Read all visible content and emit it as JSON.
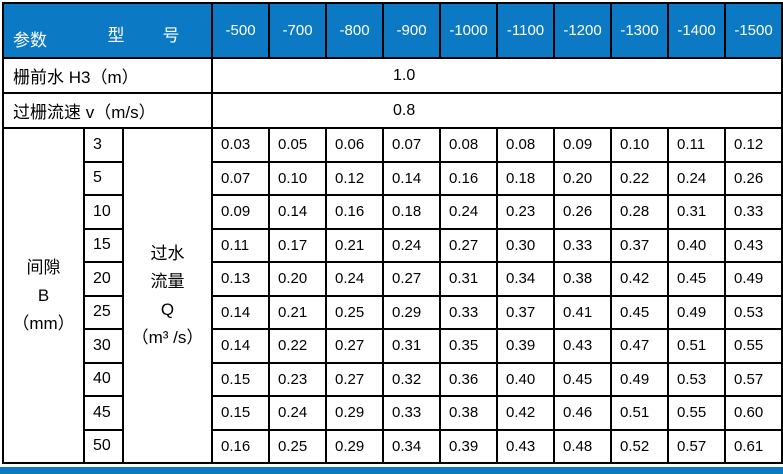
{
  "table": {
    "corner": {
      "model_chars": [
        "型",
        "号"
      ],
      "param_label": "参数"
    },
    "models": [
      "-500",
      "-700",
      "-800",
      "-900",
      "-1000",
      "-1100",
      "-1200",
      "-1300",
      "-1400",
      "-1500"
    ],
    "param_rows": [
      {
        "label": "栅前水 H3（m）",
        "value": "1.0"
      },
      {
        "label": "过栅流速 v（m/s）",
        "value": "0.8"
      }
    ],
    "gap_header": {
      "lines": [
        "间隙",
        "B",
        "（mm）"
      ]
    },
    "flow_header": {
      "lines": [
        "过水",
        "流量",
        "Q",
        "（m³ /s）"
      ]
    },
    "flow_rows": [
      {
        "gap": "3",
        "values": [
          "0.03",
          "0.05",
          "0.06",
          "0.07",
          "0.08",
          "0.08",
          "0.09",
          "0.10",
          "0.11",
          "0.12"
        ]
      },
      {
        "gap": "5",
        "values": [
          "0.07",
          "0.10",
          "0.12",
          "0.14",
          "0.16",
          "0.18",
          "0.20",
          "0.22",
          "0.24",
          "0.26"
        ]
      },
      {
        "gap": "10",
        "values": [
          "0.09",
          "0.14",
          "0.16",
          "0.18",
          "0.24",
          "0.23",
          "0.26",
          "0.28",
          "0.31",
          "0.33"
        ]
      },
      {
        "gap": "15",
        "values": [
          "0.11",
          "0.17",
          "0.21",
          "0.24",
          "0.27",
          "0.30",
          "0.33",
          "0.37",
          "0.40",
          "0.43"
        ]
      },
      {
        "gap": "20",
        "values": [
          "0.13",
          "0.20",
          "0.24",
          "0.27",
          "0.31",
          "0.34",
          "0.38",
          "0.42",
          "0.45",
          "0.49"
        ]
      },
      {
        "gap": "25",
        "values": [
          "0.14",
          "0.21",
          "0.25",
          "0.29",
          "0.33",
          "0.37",
          "0.41",
          "0.45",
          "0.49",
          "0.53"
        ]
      },
      {
        "gap": "30",
        "values": [
          "0.14",
          "0.22",
          "0.27",
          "0.31",
          "0.35",
          "0.39",
          "0.43",
          "0.47",
          "0.51",
          "0.55"
        ]
      },
      {
        "gap": "40",
        "values": [
          "0.15",
          "0.23",
          "0.27",
          "0.32",
          "0.36",
          "0.40",
          "0.45",
          "0.49",
          "0.53",
          "0.57"
        ]
      },
      {
        "gap": "45",
        "values": [
          "0.15",
          "0.24",
          "0.29",
          "0.33",
          "0.38",
          "0.42",
          "0.46",
          "0.51",
          "0.55",
          "0.60"
        ]
      },
      {
        "gap": "50",
        "values": [
          "0.16",
          "0.25",
          "0.29",
          "0.34",
          "0.39",
          "0.43",
          "0.48",
          "0.52",
          "0.57",
          "0.61"
        ]
      }
    ],
    "colors": {
      "header_bg": "#0c79c4",
      "header_text": "#ffffff",
      "border": "#000000",
      "body_text": "#000000",
      "body_bg": "#ffffff"
    }
  }
}
